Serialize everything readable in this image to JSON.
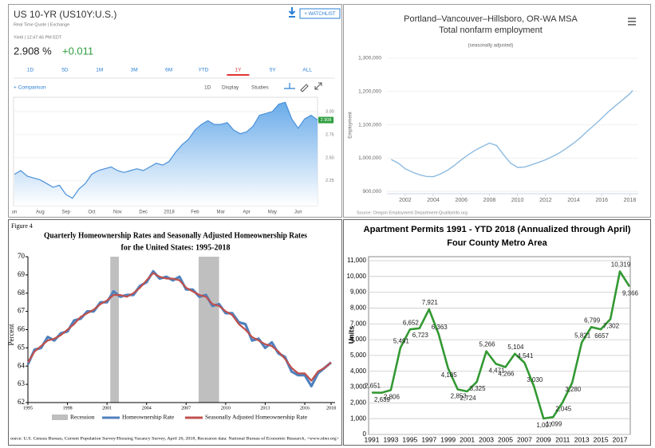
{
  "chart_data": [
    {
      "type": "area",
      "title": "US 10-YR (US10Y:U.S.)",
      "watchlist": "+ WATCHLIST",
      "subtitle": "Real Time Quote | Exchange",
      "quote_time": "Yield | 12:47:46 PM EDT",
      "last": "2.908 %",
      "change": "+0.011",
      "ranges": [
        "1D",
        "5D",
        "1M",
        "3M",
        "6M",
        "YTD",
        "1Y",
        "5Y",
        "ALL"
      ],
      "active_range": "1Y",
      "toolbar": [
        "+ Comparison",
        "1D",
        "Display",
        "Studies"
      ],
      "categories": [
        "un",
        null,
        null,
        null,
        "Aug",
        null,
        null,
        null,
        "Sep",
        null,
        null,
        null,
        "Oct",
        null,
        null,
        null,
        "Nov",
        null,
        null,
        null,
        "Dec",
        null,
        null,
        null,
        "2018",
        null,
        null,
        null,
        "Feb",
        null,
        null,
        null,
        "Mar",
        null,
        null,
        null,
        "Apr",
        null,
        null,
        null,
        "May",
        null,
        null,
        null,
        "Jun",
        null,
        null,
        null
      ],
      "values": [
        2.32,
        2.36,
        2.3,
        2.28,
        2.26,
        2.22,
        2.18,
        2.2,
        2.1,
        2.06,
        2.16,
        2.22,
        2.32,
        2.36,
        2.38,
        2.4,
        2.36,
        2.34,
        2.36,
        2.38,
        2.36,
        2.4,
        2.44,
        2.42,
        2.46,
        2.56,
        2.64,
        2.7,
        2.8,
        2.86,
        2.9,
        2.86,
        2.86,
        2.88,
        2.8,
        2.76,
        2.78,
        2.84,
        2.96,
        2.98,
        3.0,
        3.08,
        3.1,
        2.92,
        2.82,
        2.92,
        2.96,
        2.91
      ],
      "marker": 2.908,
      "color": "#4a90d9",
      "ylim": [
        1.98,
        3.155
      ],
      "yticks": [
        2.25,
        {
          "value": 2.5,
          "label": "2.50"
        },
        2.75,
        {
          "value": 3,
          "label": "3.00"
        }
      ]
    },
    {
      "type": "line",
      "title": "Portland–Vancouver–Hillsboro, OR-WA MSA",
      "subtitle": "Total nonfarm employment",
      "note": "(seasonally adjusted)",
      "ylabel": "Employment",
      "source": "Source: Oregon Employment Department·QualityInfo.org",
      "x": [
        2001,
        2001.5,
        2002,
        2002.5,
        2003,
        2003.5,
        2004,
        2004.5,
        2005,
        2005.5,
        2006,
        2006.5,
        2007,
        2007.5,
        2008,
        2008.5,
        2009,
        2009.5,
        2010,
        2010.5,
        2011,
        2011.5,
        2012,
        2012.5,
        2013,
        2013.5,
        2014,
        2014.5,
        2015,
        2015.5,
        2016,
        2016.5,
        2017,
        2017.5,
        2018,
        2018.2
      ],
      "values": [
        996000,
        985000,
        968000,
        958000,
        950000,
        945000,
        944000,
        952000,
        963000,
        978000,
        995000,
        1010000,
        1024000,
        1035000,
        1045000,
        1038000,
        1010000,
        985000,
        972000,
        973000,
        980000,
        987000,
        995000,
        1005000,
        1016000,
        1030000,
        1045000,
        1062000,
        1082000,
        1100000,
        1120000,
        1140000,
        1158000,
        1175000,
        1193000,
        1203000
      ],
      "color": "#8dbbe0",
      "xlim": [
        2000.7,
        2018.6
      ],
      "ylim": [
        893000,
        1324000
      ],
      "xticks": [
        2002,
        2004,
        2006,
        2008,
        2010,
        2012,
        2014,
        2016,
        2018
      ],
      "yticks": [
        {
          "value": 900000,
          "label": "900,000"
        },
        {
          "value": 1000000,
          "label": "1,000,000"
        },
        {
          "value": 1100000,
          "label": "1,100,000"
        },
        {
          "value": 1200000,
          "label": "1,200,000"
        },
        {
          "value": 1300000,
          "label": "1,300,000"
        }
      ],
      "grid": true
    },
    {
      "type": "line",
      "figure_label": "Figure 4",
      "title": "Quarterly Homeownership Rates and Seasonally Adjusted Homeownership Rates",
      "subtitle": "for the United States: 1995-2018",
      "ylabel": "Percent",
      "source": "ource: U.S. Census Bureau, Current Population Survey/Housing Vacancy Survey, April 26, 2018, Recession data: National Bureau of Economic Research, <www.nber.org>",
      "recession_label": "Recession",
      "recession_color": "#bfbfbf",
      "recessions": [
        [
          2001.25,
          2001.9
        ],
        [
          2007.95,
          2009.5
        ]
      ],
      "x": [
        1995,
        1995.5,
        1996,
        1996.5,
        1997,
        1997.5,
        1998,
        1998.5,
        1999,
        1999.5,
        2000,
        2000.5,
        2001,
        2001.5,
        2002,
        2002.5,
        2003,
        2003.5,
        2004,
        2004.5,
        2005,
        2005.5,
        2006,
        2006.5,
        2007,
        2007.5,
        2008,
        2008.5,
        2009,
        2009.5,
        2010,
        2010.5,
        2011,
        2011.5,
        2012,
        2012.5,
        2013,
        2013.5,
        2014,
        2014.5,
        2015,
        2015.5,
        2016,
        2016.5,
        2017,
        2017.5,
        2018
      ],
      "series": [
        {
          "name": "Homeownership Rate",
          "color": "#4f81bd",
          "width": 3.2,
          "values": [
            64.1,
            64.9,
            65.0,
            65.6,
            65.4,
            65.8,
            65.9,
            66.5,
            66.6,
            67.0,
            67.0,
            67.5,
            67.5,
            68.1,
            67.8,
            67.9,
            67.9,
            68.4,
            68.6,
            69.2,
            68.8,
            68.9,
            68.7,
            68.9,
            68.2,
            68.2,
            67.8,
            67.9,
            67.3,
            67.4,
            66.9,
            66.9,
            66.4,
            66.3,
            65.4,
            65.5,
            65.0,
            65.3,
            64.7,
            64.5,
            63.7,
            63.5,
            63.5,
            62.9,
            63.6,
            63.9,
            64.2
          ]
        },
        {
          "name": "Seasonally Adjusted Homeownership Rate",
          "color": "#c0504d",
          "width": 2.2,
          "values": [
            64.2,
            64.8,
            65.1,
            65.4,
            65.5,
            65.7,
            66.0,
            66.3,
            66.7,
            66.9,
            67.1,
            67.4,
            67.6,
            67.9,
            67.9,
            67.8,
            68.0,
            68.3,
            68.7,
            69.1,
            68.9,
            68.8,
            68.8,
            68.7,
            68.3,
            68.1,
            67.9,
            67.8,
            67.4,
            67.3,
            67.0,
            66.8,
            66.3,
            66.0,
            65.6,
            65.4,
            65.2,
            65.1,
            64.8,
            64.4,
            63.9,
            63.6,
            63.6,
            63.2,
            63.7,
            63.9,
            64.2
          ]
        }
      ],
      "xlim": [
        1995,
        2018.3
      ],
      "ylim": [
        62,
        70
      ],
      "xticks": [
        1995,
        1998,
        2001,
        2004,
        2007,
        2010,
        2013,
        2016,
        2018
      ],
      "yticks": [
        62,
        63,
        64,
        65,
        66,
        67,
        68,
        69,
        70
      ]
    },
    {
      "type": "line",
      "title": "Apartment Permits  1991 - YTD 2018 (Annualized through April)",
      "subtitle": "Four County Metro Area",
      "ylabel": "Units",
      "categories": [
        "1991",
        null,
        "1993",
        null,
        "1995",
        null,
        "1997",
        null,
        "1999",
        null,
        "2001",
        null,
        "2003",
        null,
        "2005",
        null,
        "2007",
        null,
        "2009",
        null,
        "2011",
        null,
        "2013",
        null,
        "2015",
        null,
        "2017",
        null
      ],
      "values": [
        2651,
        2639,
        2806,
        5491,
        6652,
        6723,
        7921,
        6363,
        4185,
        2853,
        2724,
        3325,
        5266,
        4471,
        4266,
        5104,
        4541,
        3030,
        1007,
        1099,
        2045,
        3280,
        5821,
        6799,
        6657,
        7302,
        10319,
        9366
      ],
      "value_labels": [
        "2,651",
        "2,639",
        "2,806",
        "5,491",
        "6,652",
        "6,723",
        "7,921",
        "6,363",
        "4,185",
        "2,853",
        "2,724",
        "3,325",
        "5,266",
        "4,471",
        "4,266",
        "5,104",
        "4,541",
        "3,030",
        "1,007",
        "1,099",
        "2,045",
        "3,280",
        "5,821",
        "6,799",
        "6657",
        "7,302",
        "10,319",
        "9,366"
      ],
      "color": "#339933",
      "ylim": [
        0,
        11000
      ],
      "yticks": [
        0,
        {
          "value": 1000,
          "label": "1,000"
        },
        {
          "value": 2000,
          "label": "2,000"
        },
        {
          "value": 3000,
          "label": "3,000"
        },
        {
          "value": 4000,
          "label": "4,000"
        },
        {
          "value": 5000,
          "label": "5,000"
        },
        {
          "value": 6000,
          "label": "6,000"
        },
        {
          "value": 7000,
          "label": "7,000"
        },
        {
          "value": 8000,
          "label": "8,000"
        },
        {
          "value": 9000,
          "label": "9,000"
        },
        {
          "value": 10000,
          "label": "10,000"
        },
        {
          "value": 11000,
          "label": "11,000"
        }
      ],
      "grid": true
    }
  ]
}
